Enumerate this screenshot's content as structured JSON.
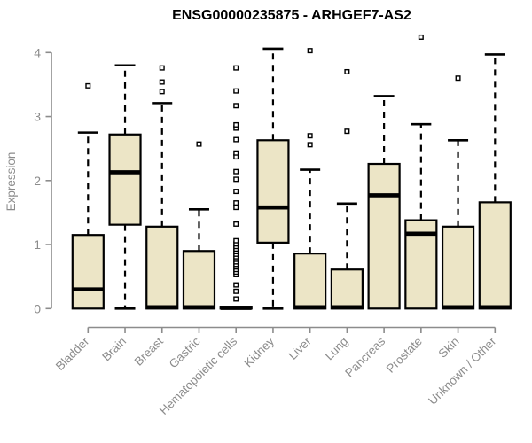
{
  "title": "ENSG00000235875 - ARHGEF7-AS2",
  "chart_data": {
    "type": "boxplot",
    "title": "ENSG00000235875 - ARHGEF7-AS2",
    "xlabel": "",
    "ylabel": "Expression",
    "ylim": [
      0,
      4.3
    ],
    "yticks": [
      0,
      1,
      2,
      3,
      4
    ],
    "grid": false,
    "legend": "none",
    "categories": [
      "Bladder",
      "Brain",
      "Breast",
      "Gastric",
      "Hematopoietic cells",
      "Kidney",
      "Liver",
      "Lung",
      "Pancreas",
      "Prostate",
      "Skin",
      "Unknown / Other"
    ],
    "series": [
      {
        "category": "Bladder",
        "low": 0,
        "q1": 0,
        "median": 0.3,
        "q3": 1.15,
        "high": 2.75,
        "outliers": [
          3.48
        ]
      },
      {
        "category": "Brain",
        "low": 0,
        "q1": 1.31,
        "median": 2.13,
        "q3": 2.72,
        "high": 3.8,
        "outliers": []
      },
      {
        "category": "Breast",
        "low": 0,
        "q1": 0,
        "median": 0.02,
        "q3": 1.28,
        "high": 3.21,
        "outliers": [
          3.39,
          3.54,
          3.76
        ]
      },
      {
        "category": "Gastric",
        "low": 0,
        "q1": 0,
        "median": 0.02,
        "q3": 0.9,
        "high": 1.55,
        "outliers": [
          2.57
        ]
      },
      {
        "category": "Hematopoietic cells",
        "low": 0,
        "q1": 0,
        "median": 0.01,
        "q3": 0.03,
        "high": 0.03,
        "outliers": [
          0.15,
          0.27,
          0.37,
          0.53,
          0.57,
          0.61,
          0.65,
          0.69,
          0.73,
          0.77,
          0.81,
          0.85,
          0.89,
          0.93,
          0.97,
          1.01,
          1.06,
          1.32,
          1.58,
          1.65,
          1.83,
          2.02,
          2.14,
          2.37,
          2.43,
          2.64,
          2.82,
          2.87,
          3.17,
          3.4,
          3.76
        ]
      },
      {
        "category": "Kidney",
        "low": 0,
        "q1": 1.03,
        "median": 1.58,
        "q3": 2.63,
        "high": 4.06,
        "outliers": []
      },
      {
        "category": "Liver",
        "low": 0,
        "q1": 0,
        "median": 0.02,
        "q3": 0.86,
        "high": 2.17,
        "outliers": [
          2.56,
          2.7,
          4.03
        ]
      },
      {
        "category": "Lung",
        "low": 0,
        "q1": 0,
        "median": 0.02,
        "q3": 0.61,
        "high": 1.64,
        "outliers": [
          2.77,
          3.7
        ]
      },
      {
        "category": "Pancreas",
        "low": 0,
        "q1": 0,
        "median": 1.77,
        "q3": 2.26,
        "high": 3.32,
        "outliers": []
      },
      {
        "category": "Prostate",
        "low": 0,
        "q1": 0,
        "median": 1.17,
        "q3": 1.38,
        "high": 2.88,
        "outliers": [
          4.24
        ]
      },
      {
        "category": "Skin",
        "low": 0,
        "q1": 0,
        "median": 0.02,
        "q3": 1.28,
        "high": 2.63,
        "outliers": [
          3.6
        ]
      },
      {
        "category": "Unknown / Other",
        "low": 0,
        "q1": 0,
        "median": 0.02,
        "q3": 1.66,
        "high": 3.97,
        "outliers": []
      }
    ],
    "colors": {
      "box_fill": "#ECE5C6",
      "box_border": "#000000",
      "median": "#000000",
      "whisker": "#000000",
      "outlier": "#000000",
      "axis": "#8C8C8C",
      "tick_label": "#8C8C8C",
      "axis_label": "#8C8C8C",
      "title": "#000000",
      "background": "#FFFFFF"
    }
  }
}
